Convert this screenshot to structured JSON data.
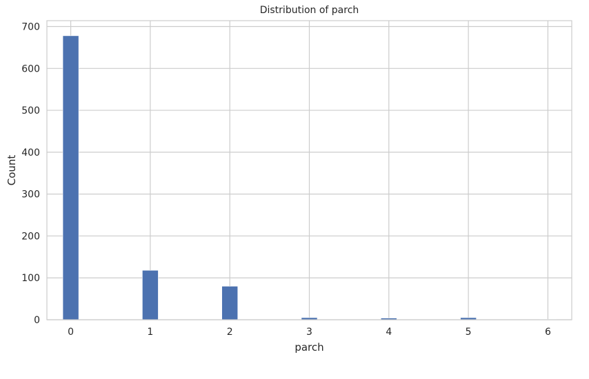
{
  "chart_data": {
    "type": "bar",
    "title": "Distribution of parch",
    "xlabel": "parch",
    "ylabel": "Count",
    "xlim": [
      -0.3,
      6.3
    ],
    "ylim": [
      0,
      714
    ],
    "x_ticks": [
      0,
      1,
      2,
      3,
      4,
      5,
      6
    ],
    "y_ticks": [
      0,
      100,
      200,
      300,
      400,
      500,
      600,
      700
    ],
    "grid": true,
    "bar_color": "#4c72b0",
    "bin_width": 0.2,
    "bars": [
      {
        "x": 0,
        "value": 678
      },
      {
        "x": 1,
        "value": 118
      },
      {
        "x": 2,
        "value": 80
      },
      {
        "x": 3,
        "value": 5
      },
      {
        "x": 4,
        "value": 4
      },
      {
        "x": 5,
        "value": 5
      },
      {
        "x": 6,
        "value": 1
      }
    ]
  }
}
